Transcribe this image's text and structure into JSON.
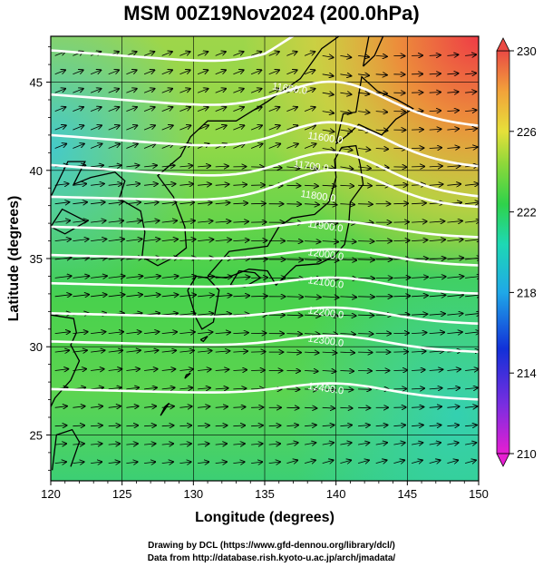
{
  "title": "MSM 00Z19Nov2024 (200.0hPa)",
  "xlabel": "Longitude (degrees)",
  "ylabel": "Latitude  (degrees)",
  "x_ticks": [
    "120",
    "125",
    "130",
    "135",
    "140",
    "145",
    "150"
  ],
  "y_ticks": [
    "25",
    "30",
    "35",
    "40",
    "45"
  ],
  "colorbar_ticks": [
    "230",
    "226",
    "222",
    "218",
    "214",
    "210"
  ],
  "contour_labels": [
    {
      "text": "11600.0",
      "lon": 135.5,
      "lat": 44.6
    },
    {
      "text": "11600.0",
      "lon": 138.0,
      "lat": 41.8
    },
    {
      "text": "11700.0",
      "lon": 137.0,
      "lat": 40.2
    },
    {
      "text": "11800.0",
      "lon": 137.5,
      "lat": 38.5
    },
    {
      "text": "11900.0",
      "lon": 138.0,
      "lat": 36.8
    },
    {
      "text": "12000.0",
      "lon": 138.0,
      "lat": 35.2
    },
    {
      "text": "12100.0",
      "lon": 138.0,
      "lat": 33.6
    },
    {
      "text": "12200.0",
      "lon": 138.0,
      "lat": 31.9
    },
    {
      "text": "12300.0",
      "lon": 138.0,
      "lat": 30.3
    },
    {
      "text": "12400.0",
      "lon": 138.0,
      "lat": 27.6
    }
  ],
  "credit_line1": "Drawing by DCL (https://www.gfd-dennou.org/library/dcl/)",
  "credit_line2": "Data from http://database.rish.kyoto-u.ac.jp/arch/jmadata/",
  "extent": {
    "lon_min": 120,
    "lon_max": 150,
    "lat_min": 22.4,
    "lat_max": 47.6
  },
  "colorbar_range": [
    210,
    230
  ],
  "colors": {
    "contour": "#ffffff",
    "wind_arrow": "#000000",
    "coastline": "#000000",
    "grid": "#000000"
  }
}
